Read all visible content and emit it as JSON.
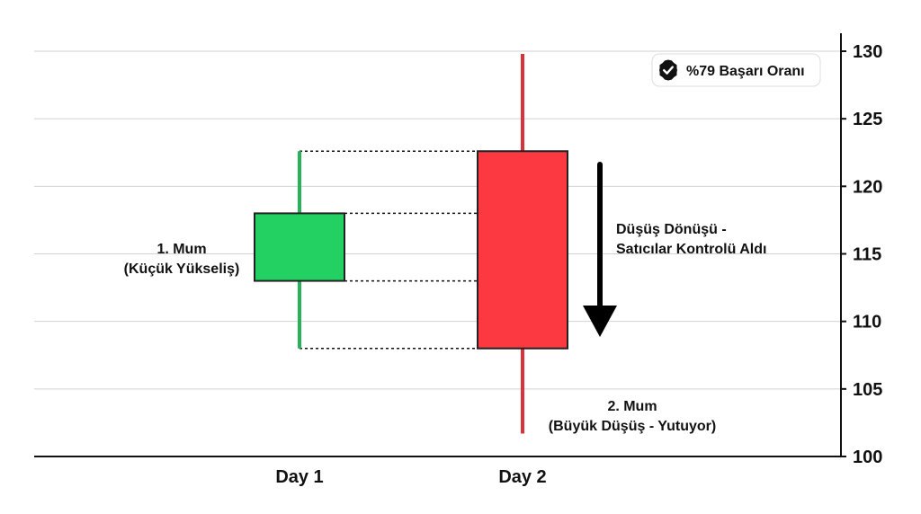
{
  "chart_data": {
    "type": "candlestick",
    "title": "",
    "xlabel": "",
    "ylabel": "",
    "ylim": [
      100,
      130
    ],
    "yticks": [
      100,
      105,
      110,
      115,
      120,
      125,
      130
    ],
    "grid": true,
    "y_axis_side": "right",
    "categories": [
      "Day 1",
      "Day 2"
    ],
    "candles": [
      {
        "category": "Day 1",
        "open": 113,
        "close": 118,
        "high": 122.6,
        "low": 108,
        "direction": "up",
        "color": "#22d161"
      },
      {
        "category": "Day 2",
        "open": 122.6,
        "close": 108,
        "high": 129.8,
        "low": 101.7,
        "direction": "down",
        "color": "#fc3841"
      }
    ],
    "annotations": {
      "candle1": [
        "1. Mum",
        "(Küçük Yükseliş)"
      ],
      "candle2": [
        "2. Mum",
        "(Büyük Düşüş - Yutuyor)"
      ],
      "reversal": [
        "Düşüş Dönüşü -",
        "Satıcılar Kontrolü Aldı"
      ]
    },
    "badge": {
      "text": "%79 Başarı Oranı",
      "icon": "verified-check-icon"
    },
    "colors": {
      "bull": "#22d161",
      "bull_wick": "#27b35a",
      "bear": "#fc3841",
      "bear_wick": "#d9323a",
      "outline": "#222222",
      "grid": "#d2d2d2",
      "axis": "#111111"
    }
  }
}
